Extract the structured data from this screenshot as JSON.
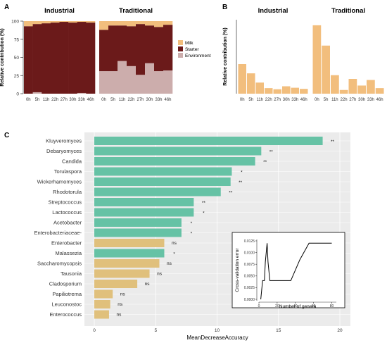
{
  "colors": {
    "milk": "#F2BE7D",
    "starter": "#6B1A1A",
    "environment": "#CCADAC",
    "bar_b": "#F2BE7D",
    "panel_bg": "#EBEBEB",
    "grid": "#FFFFFF",
    "green": "#66C2A5",
    "tan": "#E0C07C"
  },
  "panel_labels": {
    "a": "A",
    "b": "B",
    "c": "C"
  },
  "chart_data": [
    {
      "id": "A",
      "type": "bar",
      "stacked": true,
      "ylabel": "Relative contribution (%)",
      "ylim": [
        0,
        100
      ],
      "yticks": [
        0,
        25,
        50,
        75,
        100
      ],
      "legend_position": "right",
      "categories": [
        "0h",
        "5h",
        "11h",
        "22h",
        "27h",
        "30h",
        "33h",
        "46h"
      ],
      "facets": [
        {
          "title": "Industrial",
          "series": [
            {
              "name": "Environment",
              "values": [
                0,
                2,
                0,
                0,
                0,
                0,
                1,
                0
              ]
            },
            {
              "name": "Starter",
              "values": [
                93,
                94,
                97,
                98,
                99,
                98,
                98,
                98
              ]
            },
            {
              "name": "Milk",
              "values": [
                7,
                4,
                3,
                2,
                1,
                2,
                1,
                2
              ]
            }
          ]
        },
        {
          "title": "Traditional",
          "series": [
            {
              "name": "Environment",
              "values": [
                31,
                31,
                45,
                38,
                26,
                42,
                31,
                32
              ]
            },
            {
              "name": "Starter",
              "values": [
                57,
                63,
                49,
                55,
                70,
                52,
                61,
                63
              ]
            },
            {
              "name": "Milk",
              "values": [
                12,
                6,
                6,
                7,
                4,
                6,
                8,
                5
              ]
            }
          ]
        }
      ],
      "legend": [
        "Milk",
        "Starter",
        "Environment"
      ]
    },
    {
      "id": "B",
      "type": "bar",
      "ylabel": "Relative contribution (%)",
      "ylim": [
        0,
        20
      ],
      "categories": [
        "0h",
        "5h",
        "11h",
        "22h",
        "27h",
        "30h",
        "33h",
        "46h"
      ],
      "facets": [
        {
          "title": "Industrial",
          "values": [
            8,
            5.5,
            3,
            1.5,
            1.2,
            2,
            1.6,
            1.3
          ]
        },
        {
          "title": "Traditional",
          "values": [
            18.5,
            13,
            5,
            1,
            4,
            2.2,
            3.7,
            1.5
          ]
        }
      ]
    },
    {
      "id": "C",
      "type": "bar",
      "orientation": "horizontal",
      "xlabel": "MeanDecreaseAccuracy",
      "xlim": [
        0,
        20
      ],
      "xticks": [
        0,
        5,
        10,
        15,
        20
      ],
      "categories": [
        "Kluyveromyces",
        "Debaryomyces",
        "Candida",
        "Torulaspora",
        "Wickerhamomyces",
        "Rhodotorula",
        "Streptococcus",
        "Lactococcus",
        "Acetobacter",
        "Enterobacteriaceae-",
        "Enterobacter",
        "Malassezia",
        "Saccharomycopsis",
        "Tausonia",
        "Cladosporium",
        "Papiliotrema",
        "Leuconostoc",
        "Enterococcus"
      ],
      "values": [
        18.6,
        13.6,
        13.1,
        11.2,
        11.1,
        10.3,
        8.1,
        8.1,
        7.1,
        7.1,
        5.7,
        5.7,
        5.3,
        4.5,
        3.5,
        1.5,
        1.3,
        1.2
      ],
      "significance": [
        "**",
        "**",
        "**",
        "*",
        "**",
        "**",
        "**",
        "*",
        "*",
        "*",
        "ns",
        "*",
        "ns",
        "ns",
        "ns",
        "ns",
        "ns",
        "ns"
      ],
      "bar_group": [
        "green",
        "green",
        "green",
        "green",
        "green",
        "green",
        "green",
        "green",
        "green",
        "green",
        "tan",
        "green",
        "tan",
        "tan",
        "tan",
        "tan",
        "tan",
        "tan"
      ]
    },
    {
      "id": "C-inset",
      "type": "line",
      "xlabel": "Number of genera",
      "ylabel": "Cross-validation error",
      "xlim": [
        0,
        85
      ],
      "ylim": [
        0,
        0.0125
      ],
      "xticks": [
        0,
        20,
        40,
        60,
        80
      ],
      "yticks": [
        "0.0000",
        "0.0025",
        "0.0050",
        "0.0075",
        "0.0100",
        "0.0125"
      ],
      "ytick_values": [
        0,
        0.0025,
        0.005,
        0.0075,
        0.01,
        0.0125
      ],
      "x": [
        2,
        4,
        5,
        6,
        7,
        9,
        10,
        12,
        15,
        20,
        25,
        30,
        35,
        45,
        55,
        60,
        70,
        80
      ],
      "y": [
        0.0,
        0.004,
        0.004,
        0.004,
        0.008,
        0.012,
        0.008,
        0.004,
        0.004,
        0.004,
        0.004,
        0.004,
        0.004,
        0.0085,
        0.012,
        0.012,
        0.012,
        0.012
      ]
    }
  ]
}
